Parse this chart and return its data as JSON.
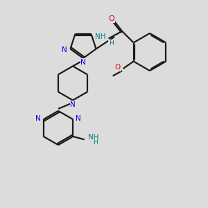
{
  "background_color": "#dcdcdc",
  "bond_color": "#1a1a1a",
  "N_color": "#0000ee",
  "O_color": "#dd0000",
  "NH_color": "#008080",
  "lw": 1.6,
  "fs": 7.5,
  "xlim": [
    0,
    10
  ],
  "ylim": [
    0,
    10
  ]
}
